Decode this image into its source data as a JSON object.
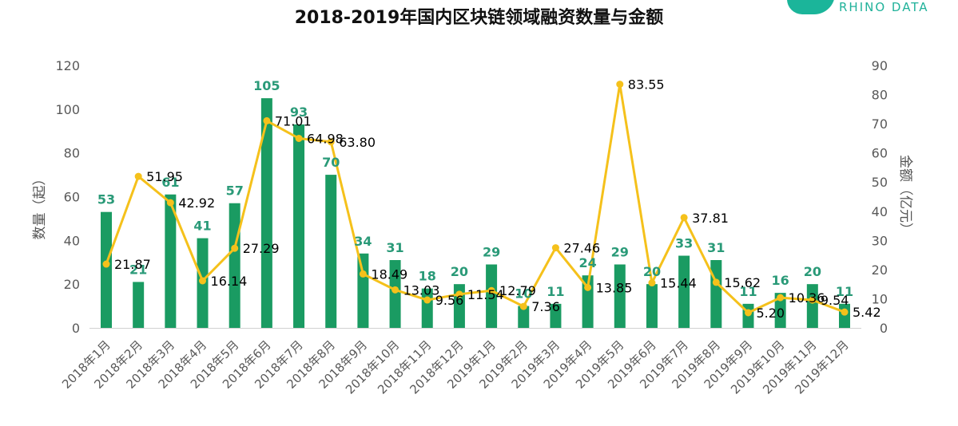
{
  "logo": {
    "text": "RHINO DATA",
    "color": "#1bb59a"
  },
  "chart_data": {
    "type": "bar+line",
    "title": "2018-2019年国内区块链领域融资数量与金额",
    "ylabel": "数量（起）",
    "y2label": "金额（亿元）",
    "ylim": [
      0,
      120
    ],
    "y2lim": [
      0,
      90
    ],
    "yticks": [
      0,
      20,
      40,
      60,
      80,
      100,
      120
    ],
    "y2ticks": [
      0,
      10,
      20,
      30,
      40,
      50,
      60,
      70,
      80,
      90
    ],
    "grid": false,
    "categories": [
      "2018年1月",
      "2018年2月",
      "2018年3月",
      "2018年4月",
      "2018年5月",
      "2018年6月",
      "2018年7月",
      "2018年8月",
      "2018年9月",
      "2018年10月",
      "2018年11月",
      "2018年12月",
      "2019年1月",
      "2019年2月",
      "2019年3月",
      "2019年4月",
      "2019年5月",
      "2019年6月",
      "2019年7月",
      "2019年8月",
      "2019年9月",
      "2019年10月",
      "2019年11月",
      "2019年12月"
    ],
    "series": [
      {
        "name": "数量",
        "type": "bar",
        "axis": "left",
        "color": "#1a9b62",
        "label_color": "#2a9a78",
        "values": [
          53,
          21,
          61,
          41,
          57,
          105,
          93,
          70,
          34,
          31,
          18,
          20,
          29,
          10,
          11,
          24,
          29,
          20,
          33,
          31,
          11,
          16,
          20,
          11
        ]
      },
      {
        "name": "金额",
        "type": "line",
        "axis": "right",
        "color": "#f5c11b",
        "label_color": "#000000",
        "values": [
          21.87,
          51.95,
          42.92,
          16.14,
          27.29,
          71.01,
          64.98,
          63.8,
          18.49,
          13.03,
          9.56,
          11.54,
          12.79,
          7.36,
          27.46,
          13.85,
          83.55,
          15.44,
          37.81,
          15.62,
          5.2,
          10.36,
          9.54,
          5.42
        ],
        "labels": [
          "21.87",
          "51.95",
          "42.92",
          "16.14",
          "27.29",
          "71.01",
          "64.98",
          "63.80",
          "18.49",
          "13.03",
          "9.56",
          "11.54",
          "12.79",
          "7.36",
          "27.46",
          "13.85",
          "83.55",
          "15.44",
          "37.81",
          "15.62",
          "5.20",
          "10.36",
          "9.54",
          "5.42"
        ]
      }
    ]
  }
}
